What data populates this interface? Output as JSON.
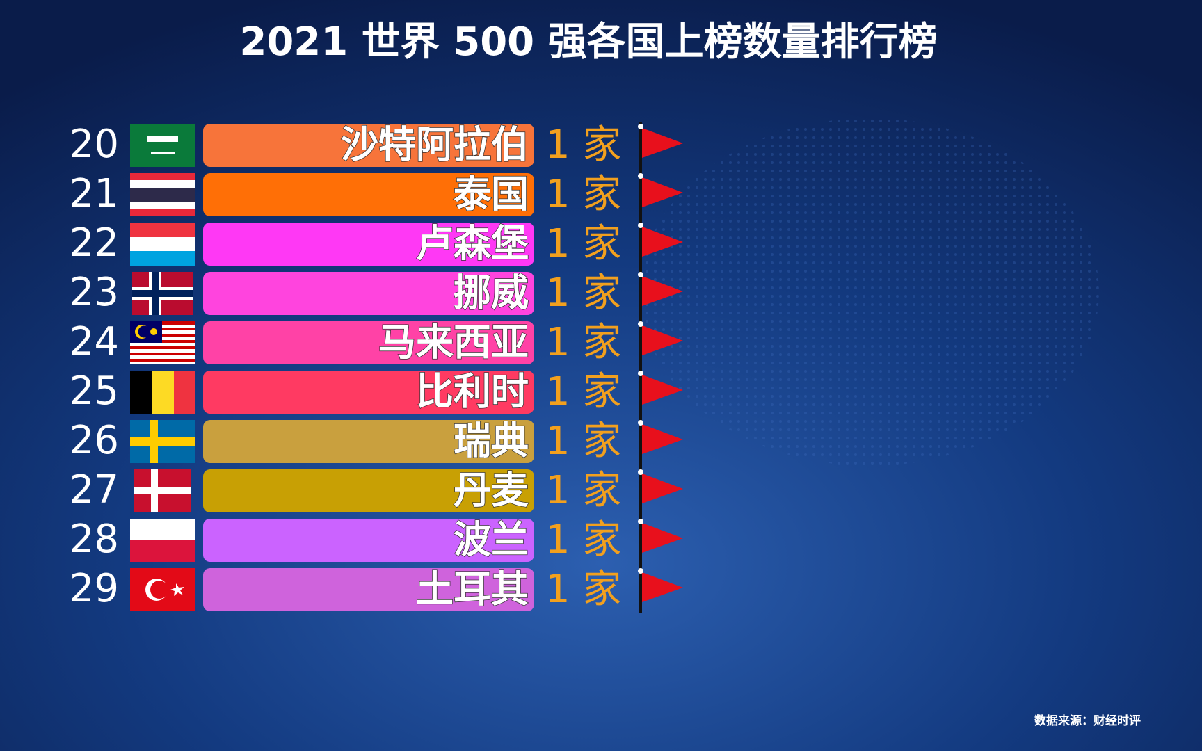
{
  "chart_data": {
    "type": "bar",
    "title": "2021 世界 500 强各国上榜数量排行榜",
    "ranks": [
      20,
      21,
      22,
      23,
      24,
      25,
      26,
      27,
      28,
      29
    ],
    "categories": [
      "沙特阿拉伯",
      "泰国",
      "卢森堡",
      "挪威",
      "马来西亚",
      "比利时",
      "瑞典",
      "丹麦",
      "波兰",
      "土耳其"
    ],
    "values": [
      1,
      1,
      1,
      1,
      1,
      1,
      1,
      1,
      1,
      1
    ],
    "value_labels": [
      "1 家",
      "1 家",
      "1 家",
      "1 家",
      "1 家",
      "1 家",
      "1 家",
      "1 家",
      "1 家",
      "1 家"
    ],
    "colors": [
      "#f7743a",
      "#ff6f06",
      "#ff38f5",
      "#ff44de",
      "#ff42a6",
      "#ff3a62",
      "#c9a03e",
      "#c8a004",
      "#cb63ff",
      "#cf63dc"
    ],
    "source": "数据来源：财经时评"
  }
}
